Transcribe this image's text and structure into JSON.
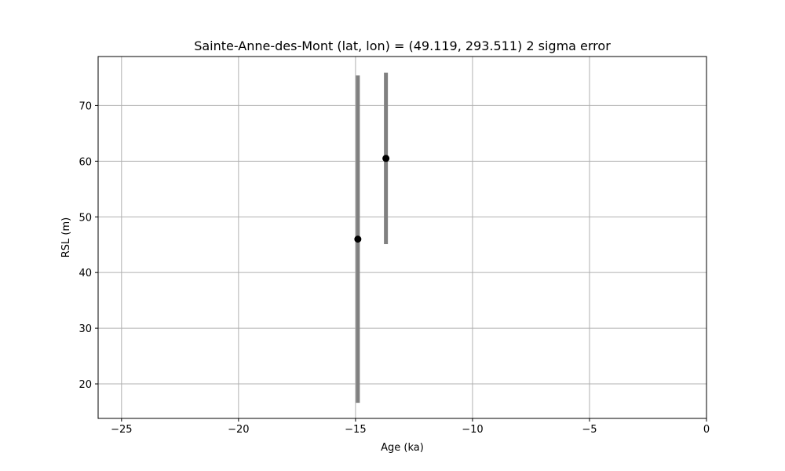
{
  "chart_data": {
    "type": "scatter",
    "title": "Sainte-Anne-des-Mont (lat, lon) = (49.119, 293.511)  2 sigma error",
    "xlabel": "Age (ka)",
    "ylabel": "RSL (m)",
    "xlim": [
      -26,
      0
    ],
    "ylim": [
      13.8,
      78.8
    ],
    "xticks": [
      -25,
      -20,
      -15,
      -10,
      -5,
      0
    ],
    "xtick_labels": [
      "−25",
      "−20",
      "−15",
      "−10",
      "−5",
      "0"
    ],
    "yticks": [
      20,
      30,
      40,
      50,
      60,
      70
    ],
    "ytick_labels": [
      "20",
      "30",
      "40",
      "50",
      "60",
      "70"
    ],
    "grid": true,
    "points": [
      {
        "x": -14.9,
        "y": 46.0,
        "ylow": 16.6,
        "yhigh": 75.4
      },
      {
        "x": -13.7,
        "y": 60.5,
        "ylow": 45.1,
        "yhigh": 75.9
      }
    ],
    "colors": {
      "marker": "#000000",
      "errorbar": "#808080",
      "grid": "#b0b0b0",
      "axes": "#000000"
    }
  }
}
